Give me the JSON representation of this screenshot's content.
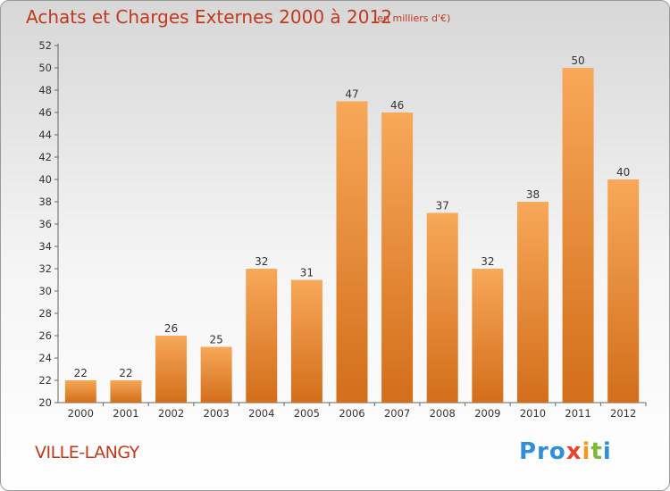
{
  "header": {
    "title": "Achats et Charges Externes 2000 à 2012",
    "subtitle": "(en milliers d'€)"
  },
  "footer": {
    "commune": "VILLE-LANGY",
    "logo": [
      "Pro",
      "x",
      "i",
      "t",
      "i"
    ]
  },
  "colors": {
    "title": "#c0391d",
    "bar_light": "#f7a859",
    "bar_dark": "#d36e1a"
  },
  "chart_data": {
    "type": "bar",
    "title": "Achats et Charges Externes 2000 à 2012",
    "subtitle": "(en milliers d'€)",
    "categories": [
      "2000",
      "2001",
      "2002",
      "2003",
      "2004",
      "2005",
      "2006",
      "2007",
      "2008",
      "2009",
      "2010",
      "2011",
      "2012"
    ],
    "values": [
      22,
      22,
      26,
      25,
      32,
      31,
      47,
      46,
      37,
      32,
      38,
      50,
      40
    ],
    "ylim": [
      20,
      52
    ],
    "yticks": [
      20,
      22,
      24,
      26,
      28,
      30,
      32,
      34,
      36,
      38,
      40,
      42,
      44,
      46,
      48,
      50,
      52
    ],
    "xlabel": "",
    "ylabel": "",
    "grid": false,
    "data_labels": true
  }
}
